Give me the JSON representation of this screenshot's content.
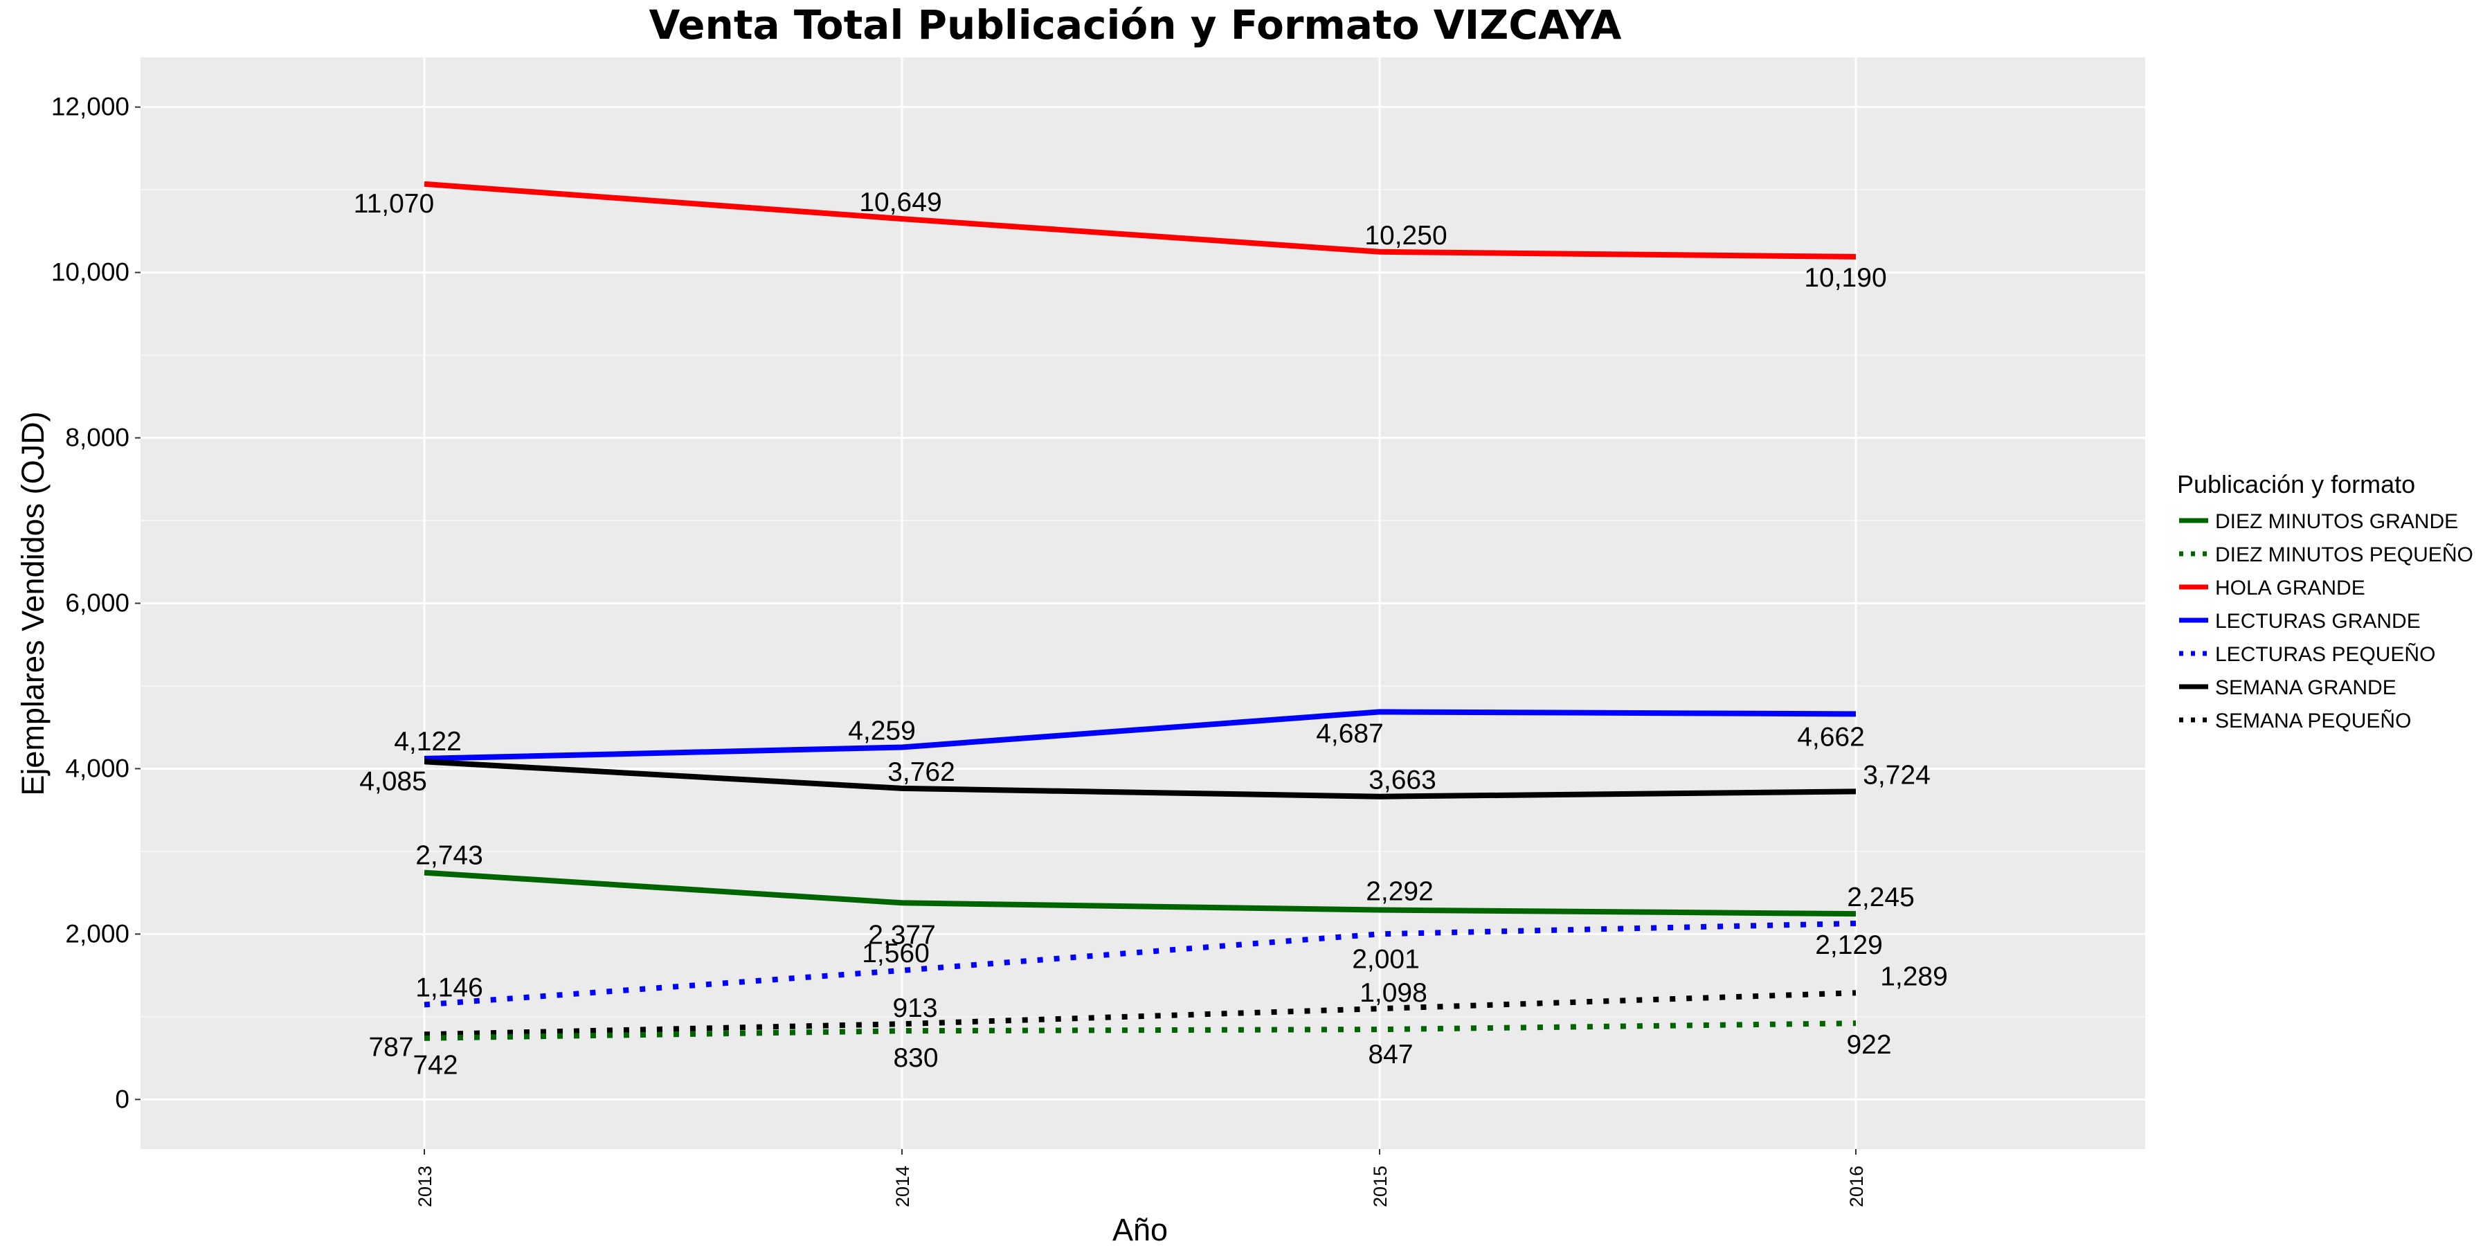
{
  "chart_data": {
    "type": "line",
    "title": "Venta Total Publicación y Formato  VIZCAYA",
    "xlabel": "Año",
    "ylabel": "Ejemplares Vendidos (OJD)",
    "x": [
      "2013",
      "2014",
      "2015",
      "2016"
    ],
    "ylim": [
      -600,
      12600
    ],
    "yticks": [
      "0",
      "2,000",
      "4,000",
      "6,000",
      "8,000",
      "10,000",
      "12,000"
    ],
    "grid": true,
    "legend_title": "Publicación y formato",
    "legend_position": "right",
    "series": [
      {
        "name": "DIEZ MINUTOS GRANDE",
        "color": "#006400",
        "dash": "solid",
        "values": [
          2743,
          2377,
          2292,
          2245
        ],
        "labels": [
          "2,743",
          "2,377",
          "2,292",
          "2,245"
        ]
      },
      {
        "name": "DIEZ MINUTOS PEQUEÑO",
        "color": "#006400",
        "dash": "dotted",
        "values": [
          742,
          830,
          847,
          922
        ],
        "labels": [
          "742",
          "830",
          "847",
          "922"
        ]
      },
      {
        "name": "HOLA GRANDE",
        "color": "#ff0000",
        "dash": "solid",
        "values": [
          11070,
          10649,
          10250,
          10190
        ],
        "labels": [
          "11,070",
          "10,649",
          "10,250",
          "10,190"
        ]
      },
      {
        "name": "LECTURAS GRANDE",
        "color": "#0000ff",
        "dash": "solid",
        "values": [
          4122,
          4259,
          4687,
          4662
        ],
        "labels": [
          "4,122",
          "4,259",
          "4,687",
          "4,662"
        ]
      },
      {
        "name": "LECTURAS PEQUEÑO",
        "color": "#0000ff",
        "dash": "dotted",
        "values": [
          1146,
          1560,
          2001,
          2129
        ],
        "labels": [
          "1,146",
          "1,560",
          "2,001",
          "2,129"
        ]
      },
      {
        "name": "SEMANA GRANDE",
        "color": "#000000",
        "dash": "solid",
        "values": [
          4085,
          3762,
          3663,
          3724
        ],
        "labels": [
          "4,085",
          "3,762",
          "3,663",
          "3,724"
        ]
      },
      {
        "name": "SEMANA PEQUEÑO",
        "color": "#000000",
        "dash": "dotted",
        "values": [
          787,
          913,
          1098,
          1289
        ],
        "labels": [
          "787",
          "913",
          "1,098",
          "1,289"
        ]
      }
    ]
  }
}
